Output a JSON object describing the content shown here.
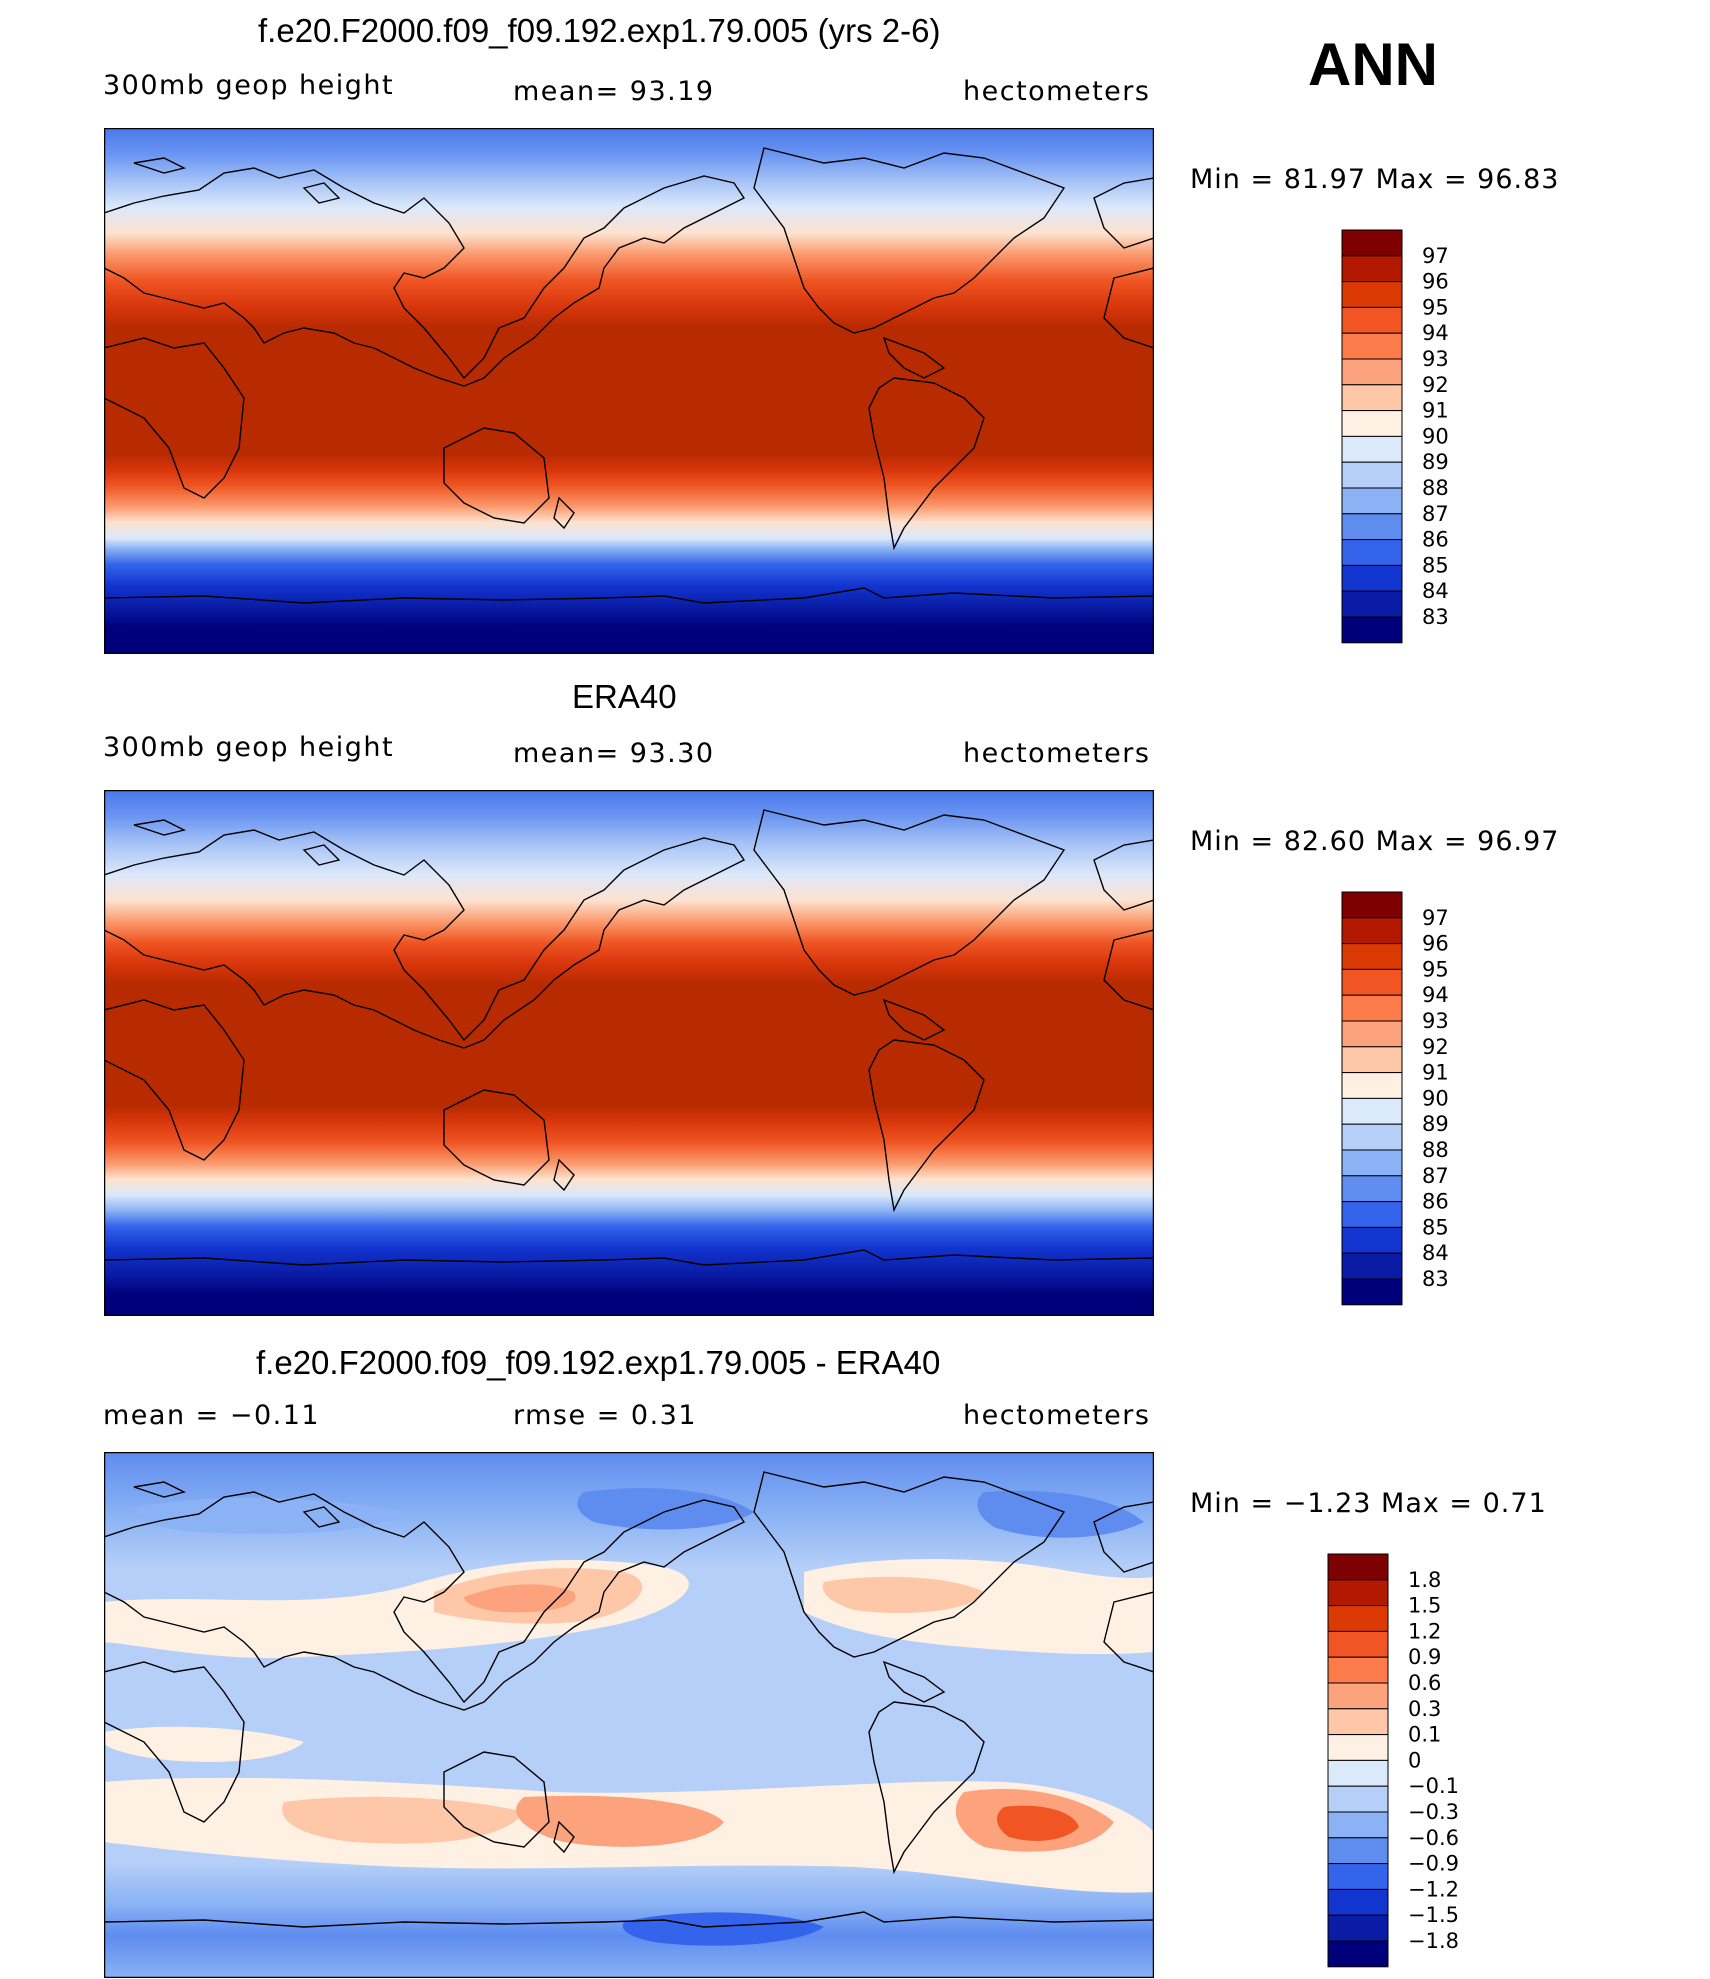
{
  "season": "ANN",
  "panels": [
    {
      "title": "f.e20.F2000.f09_f09.192.exp1.79.005 (yrs 2-6)",
      "left_label": "300mb  geop  height",
      "center_label": "mean=   93.19",
      "units": "hectometers",
      "min_max": "Min  =    81.97  Max  =    96.83",
      "colorbar_ticks": [
        "97",
        "96",
        "95",
        "94",
        "93",
        "92",
        "91",
        "90",
        "89",
        "88",
        "87",
        "86",
        "85",
        "84",
        "83"
      ],
      "colorbar_colors": [
        "#7f0000",
        "#b31800",
        "#dc3a05",
        "#f05523",
        "#fb7b4b",
        "#fca37e",
        "#fdc7a8",
        "#fff0e4",
        "#dbeafb",
        "#b5cff8",
        "#8ab2f4",
        "#5e8cef",
        "#3464eb",
        "#1235cf",
        "#0a1ca6",
        "#00007a"
      ]
    },
    {
      "title": "ERA40",
      "left_label": "300mb  geop  height",
      "center_label": "mean=   93.30",
      "units": "hectometers",
      "min_max": "Min  =    82.60  Max  =    96.97",
      "colorbar_ticks": [
        "97",
        "96",
        "95",
        "94",
        "93",
        "92",
        "91",
        "90",
        "89",
        "88",
        "87",
        "86",
        "85",
        "84",
        "83"
      ],
      "colorbar_colors": [
        "#7f0000",
        "#b31800",
        "#dc3a05",
        "#f05523",
        "#fb7b4b",
        "#fca37e",
        "#fdc7a8",
        "#fff0e4",
        "#dbeafb",
        "#b5cff8",
        "#8ab2f4",
        "#5e8cef",
        "#3464eb",
        "#1235cf",
        "#0a1ca6",
        "#00007a"
      ]
    },
    {
      "title": "f.e20.F2000.f09_f09.192.exp1.79.005 - ERA40",
      "left_label": "mean  =    −0.11",
      "center_label": "rmse  =     0.31",
      "units": "hectometers",
      "min_max": "Min  =    −1.23  Max  =      0.71",
      "colorbar_ticks": [
        "1.8",
        "1.5",
        "1.2",
        "0.9",
        "0.6",
        "0.3",
        "0.1",
        "0",
        "−0.1",
        "−0.3",
        "−0.6",
        "−0.9",
        "−1.2",
        "−1.5",
        "−1.8"
      ],
      "colorbar_colors": [
        "#7f0000",
        "#b31800",
        "#dc3a05",
        "#f05523",
        "#fb7b4b",
        "#fca37e",
        "#fdc7a8",
        "#fff0e4",
        "#dbeafb",
        "#b5cff8",
        "#8ab2f4",
        "#5e8cef",
        "#3464eb",
        "#1235cf",
        "#0a1ca6",
        "#00007a"
      ]
    }
  ]
}
